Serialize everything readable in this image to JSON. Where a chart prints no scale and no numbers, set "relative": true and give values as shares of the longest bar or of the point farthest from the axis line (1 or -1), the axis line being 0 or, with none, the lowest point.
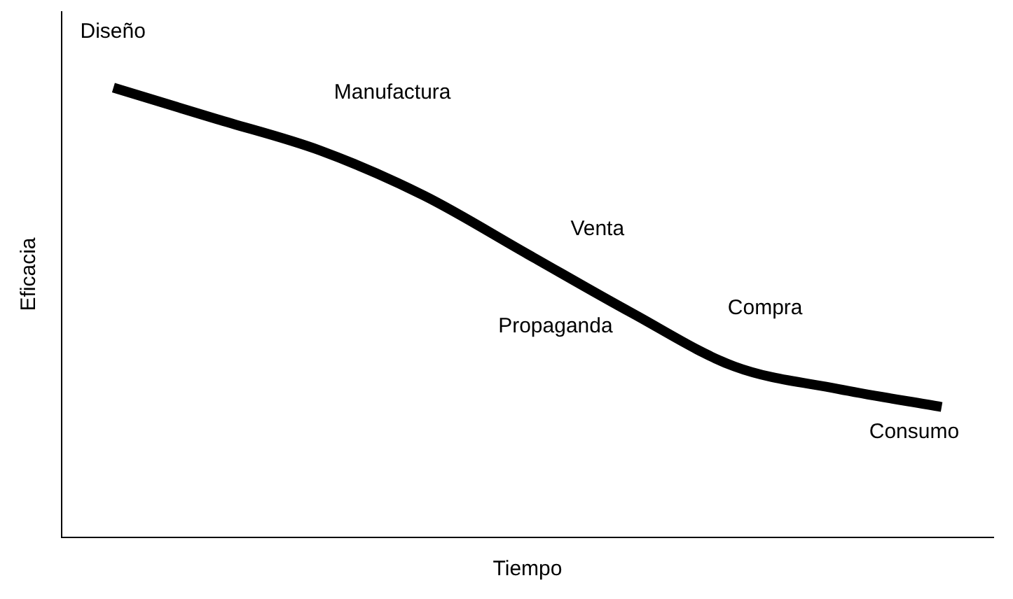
{
  "chart_data": {
    "type": "line",
    "relative": true,
    "xlabel": "Tiempo",
    "ylabel": "Eficacia",
    "categories": [
      null,
      null,
      null,
      null,
      null,
      null,
      null,
      null,
      null
    ],
    "series": [
      {
        "color": "#000000",
        "values": [
          1,
          0.93,
          0.86,
          0.76,
          0.63,
          0.5,
          0.38,
          0.33,
          0.29
        ]
      }
    ],
    "annotations": [
      "Diseño",
      "Manufactura",
      "Venta",
      "Propaganda",
      "Compra",
      "Consumo"
    ],
    "grid": false,
    "legend": false,
    "marker": "none",
    "line_style": "solid"
  }
}
